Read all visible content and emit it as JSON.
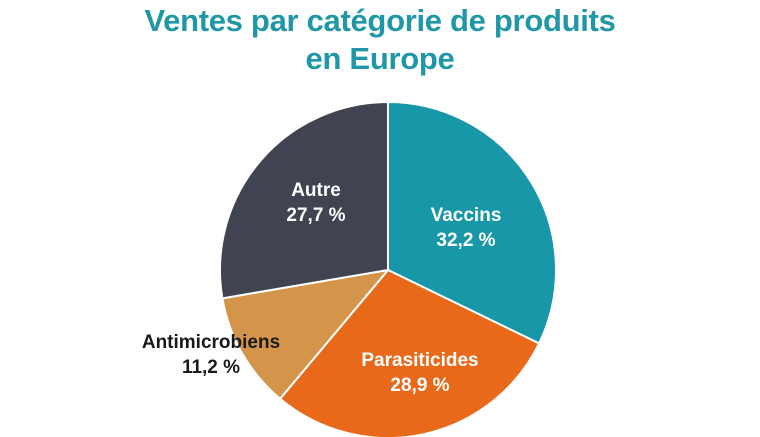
{
  "title": {
    "line1": "Ventes par catégorie de produits",
    "line2": "en Europe"
  },
  "colors": {
    "title": "#1f97a6",
    "vaccins": "#1797a8",
    "parasiticides": "#e8691a",
    "antimicrobiens": "#d4944a",
    "autre": "#404350",
    "label_light": "#ffffff",
    "label_dark": "#1a1a1a"
  },
  "chart_data": {
    "type": "pie",
    "title": "Ventes par catégorie de produits en Europe",
    "start_angle_deg": 0,
    "direction": "clockwise",
    "slices": [
      {
        "key": "vaccins",
        "label": "Vaccins",
        "value": 32.2,
        "value_text": "32,2 %",
        "color": "#1797a8",
        "label_color": "#ffffff"
      },
      {
        "key": "parasiticides",
        "label": "Parasiticides",
        "value": 28.9,
        "value_text": "28,9 %",
        "color": "#e8691a",
        "label_color": "#ffffff"
      },
      {
        "key": "antimicrobiens",
        "label": "Antimicrobiens",
        "value": 11.2,
        "value_text": "11,2 %",
        "color": "#d4944a",
        "label_color": "#1a1a1a"
      },
      {
        "key": "autre",
        "label": "Autre",
        "value": 27.7,
        "value_text": "27,7 %",
        "color": "#404350",
        "label_color": "#ffffff"
      }
    ]
  }
}
